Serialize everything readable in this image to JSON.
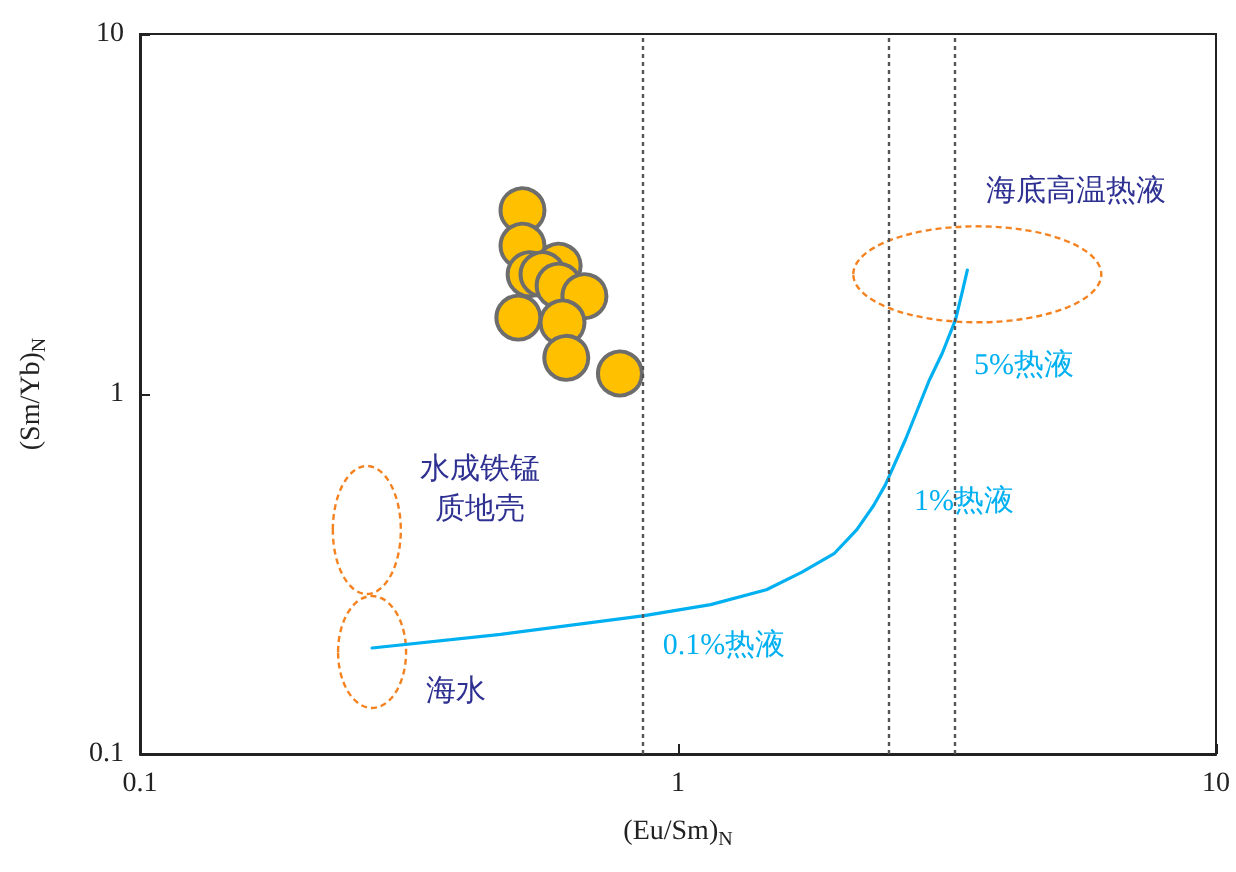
{
  "chart_data": {
    "type": "scatter",
    "xlabel": "(Eu/Sm)$_{N}$",
    "ylabel": "(Sm/Yb)$_{N}$",
    "log": "xy",
    "xlim": [
      0.1,
      10
    ],
    "ylim": [
      0.1,
      10
    ],
    "xticks": [
      0.1,
      1,
      10
    ],
    "yticks": [
      0.1,
      1,
      10
    ],
    "grid": false,
    "marker": "circle",
    "series": [
      {
        "color": "#ffc000",
        "x": [
          0.514,
          0.514,
          0.6,
          0.53,
          0.56,
          0.6,
          0.67,
          0.505,
          0.61,
          0.62,
          0.78
        ],
        "values": [
          3.24,
          2.58,
          2.27,
          2.15,
          2.15,
          2.0,
          1.87,
          1.63,
          1.58,
          1.26,
          1.14
        ]
      },
      {
        "type": "line",
        "marker": "none",
        "color": "#00b0f0",
        "x": [
          0.27,
          0.468,
          0.86,
          1.15,
          1.46,
          1.7,
          1.95,
          2.15,
          2.31,
          2.43,
          2.65,
          2.93,
          3.1,
          3.28,
          3.37,
          3.45
        ],
        "values": [
          0.197,
          0.215,
          0.242,
          0.26,
          0.286,
          0.32,
          0.36,
          0.42,
          0.49,
          0.56,
          0.75,
          1.09,
          1.3,
          1.61,
          1.9,
          2.21
        ]
      }
    ],
    "ref_lines": [
      {
        "axis": "x",
        "value": 0.86,
        "color": "#555555",
        "line_style": "dotted"
      },
      {
        "axis": "x",
        "value": 2.47,
        "color": "#555555",
        "line_style": "dotted"
      },
      {
        "axis": "x",
        "value": 3.26,
        "color": "#555555",
        "line_style": "dotted"
      }
    ],
    "annotations": [
      "海底高温热液",
      "5%热液",
      "1%热液",
      "0.1%热液",
      "水成铁锰质地壳",
      "海水"
    ]
  }
}
